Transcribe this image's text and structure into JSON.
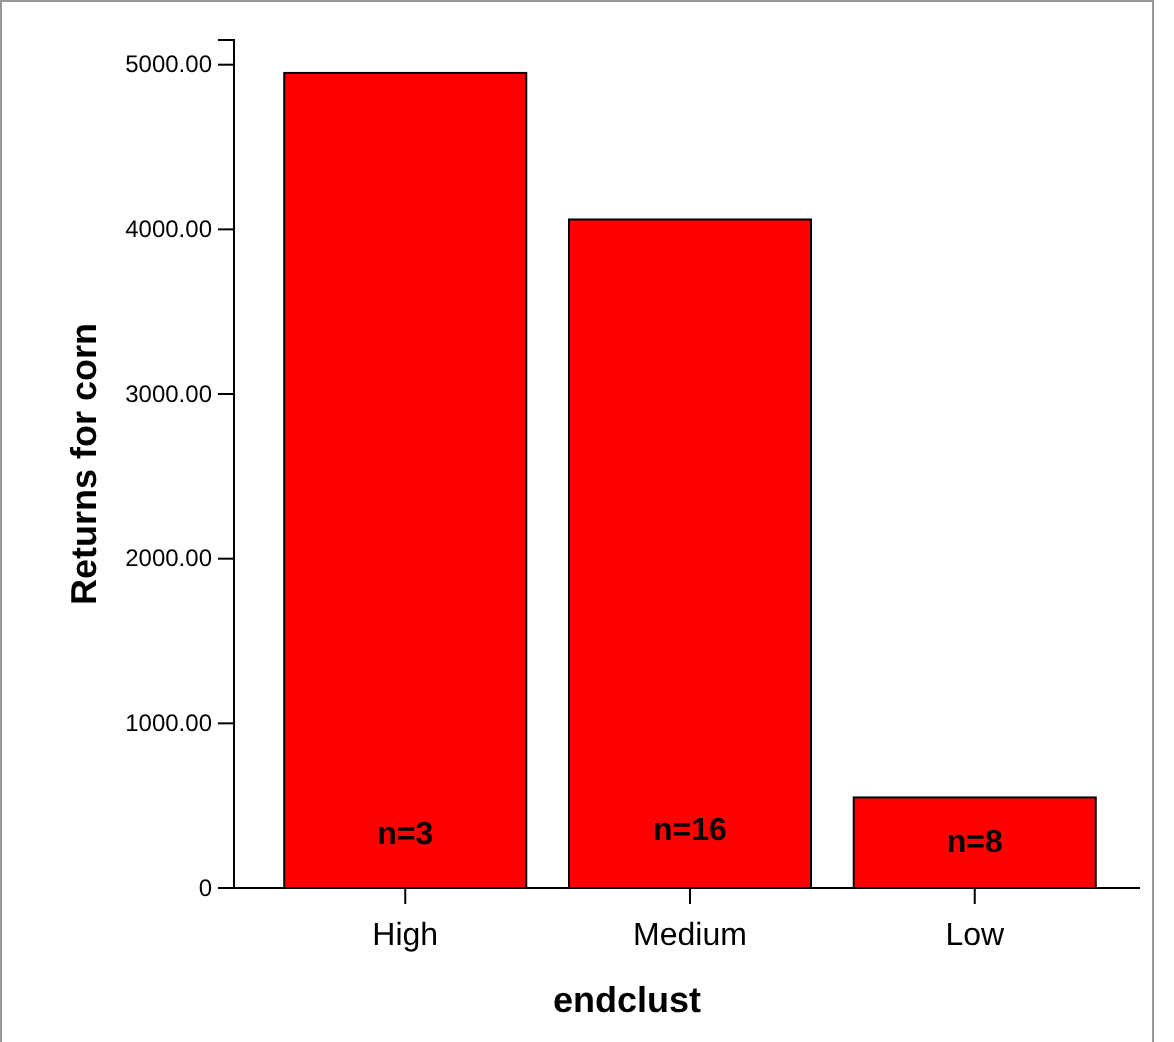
{
  "chart_data": {
    "type": "bar",
    "xlabel": "endclust",
    "ylabel": "Returns for corn",
    "categories": [
      "High",
      "Medium",
      "Low"
    ],
    "values": [
      4950,
      4060,
      550
    ],
    "color": "#ff0000",
    "ylim": [
      0,
      5150
    ],
    "yticks": [
      0,
      {
        "value": 1000,
        "label": "1000.00"
      },
      {
        "value": 2000,
        "label": "2000.00"
      },
      {
        "value": 3000,
        "label": "3000.00"
      },
      {
        "value": 4000,
        "label": "4000.00"
      },
      {
        "value": 5000,
        "label": "5000.00"
      }
    ],
    "annotations": [
      "n=3",
      "n=16",
      "n=8"
    ],
    "grid": false
  }
}
